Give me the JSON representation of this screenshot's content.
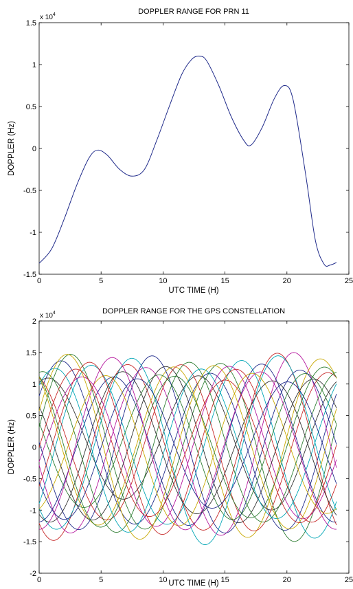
{
  "chart_data": [
    {
      "type": "line",
      "title": "DOPPLER RANGE FOR PRN 11",
      "xlabel": "UTC TIME (H)",
      "ylabel": "DOPPLER (Hz)",
      "y_multiplier": "x 10",
      "y_multiplier_exp": "4",
      "xlim": [
        0,
        25
      ],
      "ylim": [
        -1.5,
        1.5
      ],
      "xticks": [
        0,
        5,
        10,
        15,
        20,
        25
      ],
      "yticks": [
        -1.5,
        -1,
        -0.5,
        0,
        0.5,
        1,
        1.5
      ],
      "xtick_labels": [
        "0",
        "5",
        "10",
        "15",
        "20",
        "25"
      ],
      "ytick_labels": [
        "-1.5",
        "-1",
        "-0.5",
        "0",
        "0.5",
        "1",
        "1.5"
      ],
      "grid": false,
      "series": [
        {
          "color": "#1f2a8a",
          "x": [
            0,
            1,
            2,
            3,
            4,
            4.7,
            5.5,
            6.5,
            7.5,
            8.5,
            9.5,
            10.5,
            11.5,
            12.3,
            12.9,
            13.5,
            14.5,
            15.5,
            16.5,
            17.1,
            18,
            19,
            19.8,
            20.5,
            21.5,
            22.3,
            23,
            23.5,
            24
          ],
          "y": [
            -1.37,
            -1.2,
            -0.85,
            -0.45,
            -0.12,
            -0.02,
            -0.08,
            -0.25,
            -0.33,
            -0.25,
            0.1,
            0.5,
            0.88,
            1.06,
            1.1,
            1.05,
            0.75,
            0.38,
            0.1,
            0.04,
            0.25,
            0.6,
            0.75,
            0.58,
            -0.3,
            -1.1,
            -1.38,
            -1.39,
            -1.36
          ]
        }
      ]
    },
    {
      "type": "line",
      "title": "DOPPLER RANGE FOR THE GPS CONSTELLATION",
      "xlabel": "UTC TIME (H)",
      "ylabel": "DOPPLER (Hz)",
      "y_multiplier": "x 10",
      "y_multiplier_exp": "4",
      "xlim": [
        0,
        25
      ],
      "ylim": [
        -2,
        2
      ],
      "xticks": [
        0,
        5,
        10,
        15,
        20,
        25
      ],
      "yticks": [
        -2,
        -1.5,
        -1,
        -0.5,
        0,
        0.5,
        1,
        1.5,
        2
      ],
      "xtick_labels": [
        "0",
        "5",
        "10",
        "15",
        "20",
        "25"
      ],
      "ytick_labels": [
        "-2",
        "-1.5",
        "-1",
        "-0.5",
        "0",
        "0.5",
        "1",
        "1.5",
        "2"
      ],
      "grid": false,
      "period_hours": 11.97,
      "series": [
        {
          "color": "#1f2a8a",
          "amplitude": 1.38,
          "offset": 0.0,
          "phase_peak_hour": 1.8
        },
        {
          "color": "#2e7d32",
          "amplitude": 1.52,
          "offset": 0.0,
          "phase_peak_hour": 2.6
        },
        {
          "color": "#c62828",
          "amplitude": 1.52,
          "offset": 0.0,
          "phase_peak_hour": 7.2
        },
        {
          "color": "#00a5b5",
          "amplitude": 1.45,
          "offset": 0.0,
          "phase_peak_hour": 4.3
        },
        {
          "color": "#b5179e",
          "amplitude": 1.5,
          "offset": 0.0,
          "phase_peak_hour": 8.6
        },
        {
          "color": "#c8a800",
          "amplitude": 1.45,
          "offset": 0.0,
          "phase_peak_hour": 10.8
        },
        {
          "color": "#333333",
          "amplitude": 1.1,
          "offset": 0.1,
          "phase_peak_hour": 0.8
        },
        {
          "color": "#1f2a8a",
          "amplitude": 1.32,
          "offset": 0.0,
          "phase_peak_hour": 6.0
        },
        {
          "color": "#2e7d32",
          "amplitude": 1.2,
          "offset": 0.05,
          "phase_peak_hour": 9.6
        },
        {
          "color": "#c62828",
          "amplitude": 1.35,
          "offset": 0.0,
          "phase_peak_hour": 11.4
        },
        {
          "color": "#00a5b5",
          "amplitude": 1.55,
          "offset": 0.0,
          "phase_peak_hour": 7.4
        },
        {
          "color": "#b5179e",
          "amplitude": 1.3,
          "offset": 0.0,
          "phase_peak_hour": 3.4
        },
        {
          "color": "#c8a800",
          "amplitude": 1.25,
          "offset": 0.0,
          "phase_peak_hour": 5.3
        },
        {
          "color": "#333333",
          "amplitude": 1.28,
          "offset": 0.0,
          "phase_peak_hour": 10.2
        },
        {
          "color": "#1f2a8a",
          "amplitude": 1.45,
          "offset": 0.0,
          "phase_peak_hour": 9.1
        },
        {
          "color": "#2e7d32",
          "amplitude": 1.38,
          "offset": 0.0,
          "phase_peak_hour": 0.2
        },
        {
          "color": "#c62828",
          "amplitude": 1.4,
          "offset": 0.0,
          "phase_peak_hour": 4.0
        },
        {
          "color": "#00a5b5",
          "amplitude": 1.35,
          "offset": 0.0,
          "phase_peak_hour": 1.2
        },
        {
          "color": "#b5179e",
          "amplitude": 1.42,
          "offset": 0.0,
          "phase_peak_hour": 5.9
        },
        {
          "color": "#c8a800",
          "amplitude": 1.5,
          "offset": 0.0,
          "phase_peak_hour": 2.2
        },
        {
          "color": "#333333",
          "amplitude": 1.22,
          "offset": 0.0,
          "phase_peak_hour": 6.8
        },
        {
          "color": "#1f2a8a",
          "amplitude": 1.15,
          "offset": 0.0,
          "phase_peak_hour": 8.0
        },
        {
          "color": "#2e7d32",
          "amplitude": 1.3,
          "offset": 0.0,
          "phase_peak_hour": 11.0
        },
        {
          "color": "#c62828",
          "amplitude": 1.25,
          "offset": 0.0,
          "phase_peak_hour": 3.0
        }
      ]
    }
  ]
}
